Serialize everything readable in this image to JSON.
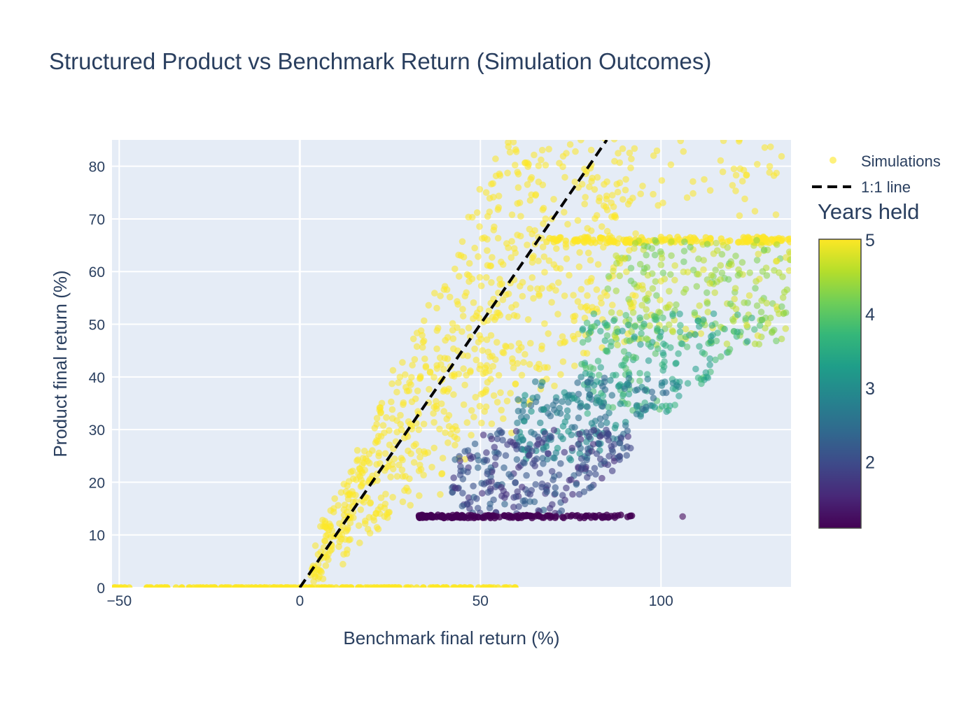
{
  "chart_data": {
    "type": "scatter",
    "title": "Structured Product vs Benchmark Return (Simulation Outcomes)",
    "xlabel": "Benchmark final return (%)",
    "ylabel": "Product final return (%)",
    "xlim": [
      -52,
      136
    ],
    "ylim": [
      0,
      85
    ],
    "x_ticks": [
      -50,
      0,
      50,
      100
    ],
    "y_ticks": [
      0,
      10,
      20,
      30,
      40,
      50,
      60,
      70,
      80
    ],
    "x_tick_labels": [
      "−50",
      "0",
      "50",
      "100"
    ],
    "y_tick_labels": [
      "0",
      "10",
      "20",
      "30",
      "40",
      "50",
      "60",
      "70",
      "80"
    ],
    "grid": true,
    "legend_position": "top-right",
    "colors": {
      "plot_bg": "#e5ecf6",
      "grid": "#ffffff",
      "text": "#2a3f5f",
      "line": "#000000"
    },
    "series": [
      {
        "name": "Simulations",
        "kind": "scatter",
        "color_by": "Years held",
        "colorscale": "Viridis",
        "clusters": [
          {
            "years": 5,
            "note": "flat zero floor",
            "x_range": [
              -52,
              60
            ],
            "y": 0
          },
          {
            "years": 5,
            "note": "slope above 1:1, band",
            "x_range": [
              5,
              90
            ],
            "y_vs_x": "about 0.8–1.45 × x, capped at 85"
          },
          {
            "years": 5,
            "note": "cap line",
            "x_range": [
              68,
              136
            ],
            "y": 66
          },
          {
            "years": 4.3,
            "x_range": [
              85,
              136
            ],
            "y_range": [
              48,
              66
            ]
          },
          {
            "years": 3.6,
            "x_range": [
              80,
              125
            ],
            "y_range": [
              35,
              52
            ]
          },
          {
            "years": 2.8,
            "x_range": [
              62,
              105
            ],
            "y_range": [
              25,
              40
            ]
          },
          {
            "years": 2,
            "x_range": [
              45,
              92
            ],
            "y_range": [
              14,
              30
            ]
          },
          {
            "years": 1,
            "note": "flat coupon line",
            "x_range": [
              33,
              105
            ],
            "y": 13.5
          }
        ]
      },
      {
        "name": "1:1 line",
        "kind": "line",
        "style": "dashed",
        "x": [
          0,
          85
        ],
        "y": [
          0,
          85
        ]
      }
    ],
    "colorbar": {
      "title": "Years held",
      "min": 1.1,
      "max": 5,
      "ticks": [
        2,
        3,
        4,
        5
      ],
      "tick_labels": [
        "2",
        "3",
        "4",
        "5"
      ]
    }
  }
}
